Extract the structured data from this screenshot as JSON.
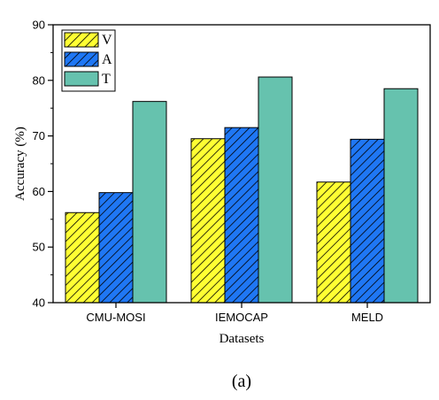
{
  "chart_data": {
    "type": "bar",
    "categories": [
      "CMU-MOSI",
      "IEMOCAP",
      "MELD"
    ],
    "series": [
      {
        "name": "V",
        "values": [
          56.2,
          69.5,
          61.7
        ],
        "color": "#ffff33",
        "pattern": "hatch-forward"
      },
      {
        "name": "A",
        "values": [
          59.8,
          71.5,
          69.4
        ],
        "color": "#1f77f4",
        "pattern": "hatch-forward"
      },
      {
        "name": "T",
        "values": [
          76.2,
          80.6,
          78.5
        ],
        "color": "#66c2ae",
        "pattern": "solid"
      }
    ],
    "xlabel": "Datasets",
    "ylabel": "Accuracy (%)",
    "ylim": [
      40,
      90
    ],
    "yticks": [
      40,
      50,
      60,
      70,
      80,
      90
    ],
    "grid": false,
    "legend_position": "top-left"
  },
  "caption": "(a)"
}
